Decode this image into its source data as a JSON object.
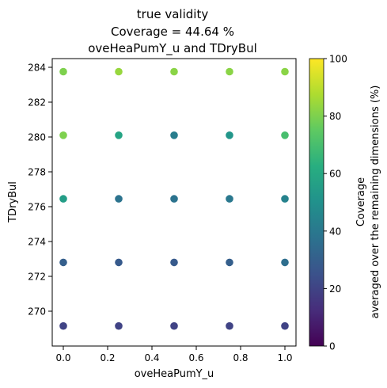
{
  "chart_data": {
    "type": "scatter",
    "title_lines": [
      "true validity",
      "Coverage = 44.64 %",
      "oveHeaPumY_u and TDryBul"
    ],
    "xlabel": "oveHeaPumY_u",
    "ylabel": "TDryBul",
    "xlim": [
      -0.05,
      1.05
    ],
    "ylim": [
      268.0,
      284.5
    ],
    "x_ticks": [
      0.0,
      0.2,
      0.4,
      0.6,
      0.8,
      1.0
    ],
    "x_tick_labels": [
      "0.0",
      "0.2",
      "0.4",
      "0.6",
      "0.8",
      "1.0"
    ],
    "y_ticks": [
      270,
      272,
      274,
      276,
      278,
      280,
      282,
      284
    ],
    "y_tick_labels": [
      "270",
      "272",
      "274",
      "276",
      "278",
      "280",
      "282",
      "284"
    ],
    "points": [
      {
        "x": 0.0,
        "y": 283.75,
        "c": 80
      },
      {
        "x": 0.25,
        "y": 283.75,
        "c": 84
      },
      {
        "x": 0.5,
        "y": 283.75,
        "c": 82
      },
      {
        "x": 0.75,
        "y": 283.75,
        "c": 82
      },
      {
        "x": 1.0,
        "y": 283.75,
        "c": 82
      },
      {
        "x": 0.0,
        "y": 280.1,
        "c": 80
      },
      {
        "x": 0.25,
        "y": 280.1,
        "c": 58
      },
      {
        "x": 0.5,
        "y": 280.1,
        "c": 42
      },
      {
        "x": 0.75,
        "y": 280.1,
        "c": 52
      },
      {
        "x": 1.0,
        "y": 280.1,
        "c": 70
      },
      {
        "x": 0.0,
        "y": 276.45,
        "c": 55
      },
      {
        "x": 0.25,
        "y": 276.45,
        "c": 38
      },
      {
        "x": 0.5,
        "y": 276.45,
        "c": 38
      },
      {
        "x": 0.75,
        "y": 276.45,
        "c": 40
      },
      {
        "x": 1.0,
        "y": 276.45,
        "c": 44
      },
      {
        "x": 0.0,
        "y": 272.8,
        "c": 30
      },
      {
        "x": 0.25,
        "y": 272.8,
        "c": 28
      },
      {
        "x": 0.5,
        "y": 272.8,
        "c": 28
      },
      {
        "x": 0.75,
        "y": 272.8,
        "c": 30
      },
      {
        "x": 1.0,
        "y": 272.8,
        "c": 36
      },
      {
        "x": 0.0,
        "y": 269.15,
        "c": 20
      },
      {
        "x": 0.25,
        "y": 269.15,
        "c": 20
      },
      {
        "x": 0.5,
        "y": 269.15,
        "c": 20
      },
      {
        "x": 0.75,
        "y": 269.15,
        "c": 20
      },
      {
        "x": 1.0,
        "y": 269.15,
        "c": 20
      }
    ],
    "colorbar": {
      "label_lines": [
        "Coverage",
        "averaged over the remaining dimensions (%)"
      ],
      "range": [
        0,
        100
      ],
      "ticks": [
        0,
        20,
        40,
        60,
        80,
        100
      ],
      "tick_labels": [
        "0",
        "20",
        "40",
        "60",
        "80",
        "100"
      ],
      "colormap": "viridis"
    }
  }
}
